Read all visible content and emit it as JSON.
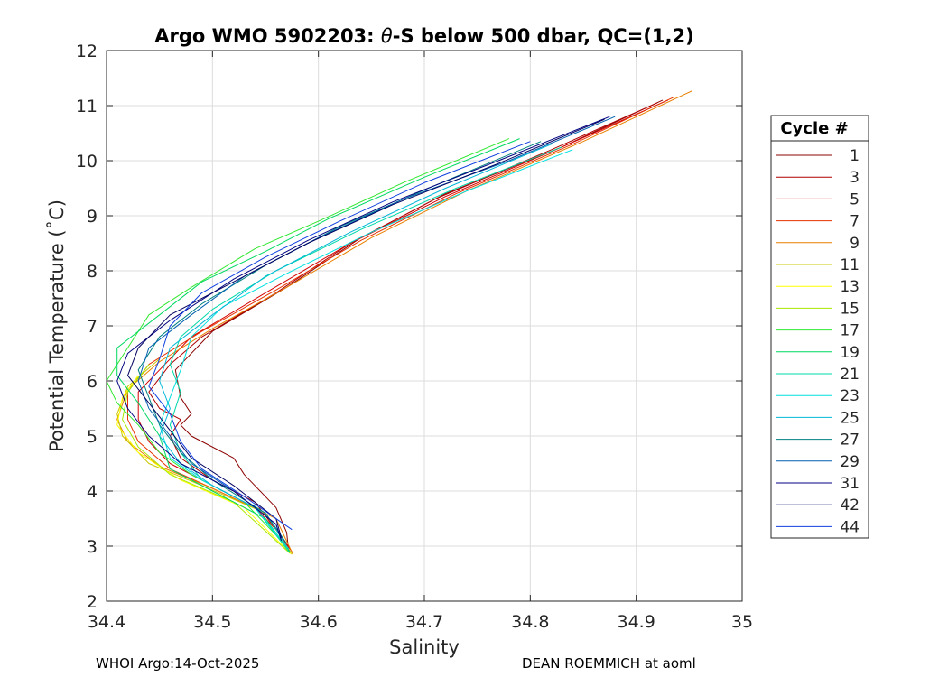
{
  "chart_data": {
    "type": "line",
    "title_prefix": "Argo WMO 5902203: ",
    "title_theta": "θ",
    "title_suffix": "-S below 500 dbar,  QC=(1,2)",
    "xlabel": "Salinity",
    "ylabel": "Potential Temperature (˚C)",
    "xlim": [
      34.4,
      35.0
    ],
    "ylim": [
      2,
      12
    ],
    "xticks": [
      34.4,
      34.5,
      34.6,
      34.7,
      34.8,
      34.9,
      35
    ],
    "xtick_labels": [
      "34.4",
      "34.5",
      "34.6",
      "34.7",
      "34.8",
      "34.9",
      "35"
    ],
    "yticks": [
      2,
      3,
      4,
      5,
      6,
      7,
      8,
      9,
      10,
      11,
      12
    ],
    "ytick_labels": [
      "2",
      "3",
      "4",
      "5",
      "6",
      "7",
      "8",
      "9",
      "10",
      "11",
      "12"
    ],
    "grid": true,
    "legend_title": "Cycle #",
    "legend_placement": "right-outside",
    "series": [
      {
        "name": "1",
        "color": "#8b0000",
        "points": [
          [
            34.925,
            11.1
          ],
          [
            34.83,
            10.25
          ],
          [
            34.72,
            9.4
          ],
          [
            34.64,
            8.6
          ],
          [
            34.57,
            7.7
          ],
          [
            34.5,
            6.9
          ],
          [
            34.465,
            6.2
          ],
          [
            34.47,
            5.7
          ],
          [
            34.48,
            5.4
          ],
          [
            34.47,
            5.2
          ],
          [
            34.48,
            5.0
          ],
          [
            34.52,
            4.6
          ],
          [
            34.53,
            4.3
          ],
          [
            34.56,
            3.7
          ],
          [
            34.57,
            3.25
          ],
          [
            34.572,
            2.9
          ]
        ]
      },
      {
        "name": "3",
        "color": "#b00000",
        "points": [
          [
            34.92,
            11.05
          ],
          [
            34.82,
            10.2
          ],
          [
            34.71,
            9.3
          ],
          [
            34.63,
            8.5
          ],
          [
            34.56,
            7.6
          ],
          [
            34.49,
            6.8
          ],
          [
            34.46,
            6.3
          ],
          [
            34.44,
            5.8
          ],
          [
            34.45,
            5.5
          ],
          [
            34.47,
            5.3
          ],
          [
            34.46,
            5.0
          ],
          [
            34.47,
            4.6
          ],
          [
            34.5,
            4.2
          ],
          [
            34.54,
            3.8
          ],
          [
            34.56,
            3.3
          ],
          [
            34.572,
            2.95
          ]
        ]
      },
      {
        "name": "5",
        "color": "#d40000",
        "points": [
          [
            34.93,
            11.1
          ],
          [
            34.83,
            10.25
          ],
          [
            34.72,
            9.35
          ],
          [
            34.63,
            8.5
          ],
          [
            34.55,
            7.6
          ],
          [
            34.48,
            6.8
          ],
          [
            34.45,
            6.2
          ],
          [
            34.43,
            5.8
          ],
          [
            34.43,
            5.3
          ],
          [
            34.44,
            4.9
          ],
          [
            34.46,
            4.5
          ],
          [
            34.5,
            4.1
          ],
          [
            34.54,
            3.7
          ],
          [
            34.56,
            3.3
          ],
          [
            34.575,
            2.9
          ]
        ]
      },
      {
        "name": "7",
        "color": "#e83000",
        "points": [
          [
            34.935,
            11.15
          ],
          [
            34.84,
            10.3
          ],
          [
            34.73,
            9.4
          ],
          [
            34.64,
            8.55
          ],
          [
            34.56,
            7.65
          ],
          [
            34.49,
            6.9
          ],
          [
            34.44,
            6.3
          ],
          [
            34.42,
            5.8
          ],
          [
            34.42,
            5.3
          ],
          [
            34.43,
            4.9
          ],
          [
            34.46,
            4.4
          ],
          [
            34.5,
            4.05
          ],
          [
            34.55,
            3.6
          ],
          [
            34.574,
            2.88
          ]
        ]
      },
      {
        "name": "9",
        "color": "#e88000",
        "points": [
          [
            34.953,
            11.27
          ],
          [
            34.85,
            10.35
          ],
          [
            34.74,
            9.45
          ],
          [
            34.65,
            8.6
          ],
          [
            34.57,
            7.7
          ],
          [
            34.5,
            6.95
          ],
          [
            34.45,
            6.35
          ],
          [
            34.42,
            5.85
          ],
          [
            34.41,
            5.3
          ],
          [
            34.42,
            4.9
          ],
          [
            34.45,
            4.45
          ],
          [
            34.5,
            4.05
          ],
          [
            34.56,
            3.5
          ],
          [
            34.576,
            2.85
          ]
        ]
      },
      {
        "name": "11",
        "color": "#c8c800",
        "points": [
          [
            34.45,
            6.4
          ],
          [
            34.42,
            5.9
          ],
          [
            34.41,
            5.4
          ],
          [
            34.415,
            5.0
          ],
          [
            34.44,
            4.5
          ],
          [
            34.49,
            4.1
          ],
          [
            34.55,
            3.6
          ],
          [
            34.575,
            2.85
          ]
        ]
      },
      {
        "name": "13",
        "color": "#ffff00",
        "points": [
          [
            34.43,
            6.1
          ],
          [
            34.415,
            5.7
          ],
          [
            34.41,
            5.2
          ],
          [
            34.43,
            4.7
          ],
          [
            34.47,
            4.2
          ],
          [
            34.53,
            3.7
          ],
          [
            34.574,
            2.86
          ]
        ]
      },
      {
        "name": "15",
        "color": "#a8e800",
        "points": [
          [
            34.44,
            6.3
          ],
          [
            34.42,
            5.8
          ],
          [
            34.415,
            5.3
          ],
          [
            34.43,
            4.8
          ],
          [
            34.46,
            4.3
          ],
          [
            34.52,
            3.8
          ],
          [
            34.573,
            2.87
          ]
        ]
      },
      {
        "name": "17",
        "color": "#30e830",
        "points": [
          [
            34.78,
            10.4
          ],
          [
            34.68,
            9.6
          ],
          [
            34.6,
            8.9
          ],
          [
            34.54,
            8.4
          ],
          [
            34.48,
            7.7
          ],
          [
            34.44,
            7.2
          ],
          [
            34.42,
            6.6
          ],
          [
            34.4,
            6.0
          ],
          [
            34.41,
            5.6
          ],
          [
            34.43,
            5.2
          ],
          [
            34.45,
            4.7
          ],
          [
            34.48,
            4.3
          ],
          [
            34.53,
            3.8
          ],
          [
            34.57,
            3.0
          ]
        ]
      },
      {
        "name": "19",
        "color": "#00d860",
        "points": [
          [
            34.79,
            10.4
          ],
          [
            34.7,
            9.7
          ],
          [
            34.61,
            8.95
          ],
          [
            34.55,
            8.35
          ],
          [
            34.49,
            7.8
          ],
          [
            34.45,
            7.2
          ],
          [
            34.41,
            6.6
          ],
          [
            34.41,
            6.1
          ],
          [
            34.43,
            5.6
          ],
          [
            34.45,
            5.0
          ],
          [
            34.46,
            4.4
          ],
          [
            34.5,
            4.0
          ],
          [
            34.55,
            3.5
          ],
          [
            34.573,
            2.9
          ]
        ]
      },
      {
        "name": "21",
        "color": "#00d8a8",
        "points": [
          [
            34.83,
            10.25
          ],
          [
            34.73,
            9.5
          ],
          [
            34.64,
            8.75
          ],
          [
            34.56,
            8.0
          ],
          [
            34.5,
            7.3
          ],
          [
            34.47,
            6.8
          ],
          [
            34.46,
            6.3
          ],
          [
            34.47,
            5.8
          ],
          [
            34.46,
            5.2
          ],
          [
            34.47,
            4.7
          ],
          [
            34.49,
            4.2
          ],
          [
            34.54,
            3.7
          ],
          [
            34.572,
            2.9
          ]
        ]
      },
      {
        "name": "23",
        "color": "#00e0e0",
        "points": [
          [
            34.84,
            10.2
          ],
          [
            34.74,
            9.45
          ],
          [
            34.65,
            8.7
          ],
          [
            34.57,
            7.95
          ],
          [
            34.51,
            7.35
          ],
          [
            34.48,
            6.8
          ],
          [
            34.47,
            6.2
          ],
          [
            34.46,
            5.7
          ],
          [
            34.45,
            5.2
          ],
          [
            34.46,
            4.6
          ],
          [
            34.49,
            4.2
          ],
          [
            34.54,
            3.7
          ],
          [
            34.572,
            2.95
          ]
        ]
      },
      {
        "name": "25",
        "color": "#00b8d8",
        "points": [
          [
            34.82,
            10.3
          ],
          [
            34.72,
            9.5
          ],
          [
            34.63,
            8.7
          ],
          [
            34.55,
            7.9
          ],
          [
            34.5,
            7.2
          ],
          [
            34.46,
            6.6
          ],
          [
            34.45,
            6.0
          ],
          [
            34.46,
            5.5
          ],
          [
            34.45,
            5.0
          ],
          [
            34.47,
            4.5
          ],
          [
            34.5,
            4.1
          ],
          [
            34.55,
            3.6
          ],
          [
            34.57,
            3.0
          ]
        ]
      },
      {
        "name": "27",
        "color": "#008080",
        "points": [
          [
            34.81,
            10.35
          ],
          [
            34.71,
            9.55
          ],
          [
            34.62,
            8.8
          ],
          [
            34.55,
            8.1
          ],
          [
            34.49,
            7.4
          ],
          [
            34.45,
            6.8
          ],
          [
            34.43,
            6.2
          ],
          [
            34.44,
            5.7
          ],
          [
            34.45,
            5.2
          ],
          [
            34.47,
            4.7
          ],
          [
            34.5,
            4.2
          ],
          [
            34.55,
            3.6
          ],
          [
            34.57,
            3.05
          ]
        ]
      },
      {
        "name": "29",
        "color": "#0060b0",
        "points": [
          [
            34.88,
            10.8
          ],
          [
            34.78,
            10.0
          ],
          [
            34.68,
            9.3
          ],
          [
            34.6,
            8.6
          ],
          [
            34.53,
            7.9
          ],
          [
            34.48,
            7.2
          ],
          [
            34.44,
            6.6
          ],
          [
            34.43,
            6.0
          ],
          [
            34.44,
            5.5
          ],
          [
            34.46,
            5.0
          ],
          [
            34.48,
            4.5
          ],
          [
            34.52,
            4.0
          ],
          [
            34.56,
            3.4
          ],
          [
            34.565,
            3.1
          ]
        ]
      },
      {
        "name": "31",
        "color": "#000080",
        "points": [
          [
            34.875,
            10.8
          ],
          [
            34.77,
            10.0
          ],
          [
            34.67,
            9.25
          ],
          [
            34.59,
            8.55
          ],
          [
            34.52,
            7.85
          ],
          [
            34.46,
            7.1
          ],
          [
            34.42,
            6.5
          ],
          [
            34.41,
            6.0
          ],
          [
            34.42,
            5.5
          ],
          [
            34.44,
            5.0
          ],
          [
            34.47,
            4.5
          ],
          [
            34.52,
            4.0
          ],
          [
            34.56,
            3.4
          ],
          [
            34.565,
            3.1
          ]
        ]
      },
      {
        "name": "42",
        "color": "#000060",
        "points": [
          [
            34.87,
            10.75
          ],
          [
            34.77,
            9.95
          ],
          [
            34.67,
            9.2
          ],
          [
            34.59,
            8.5
          ],
          [
            34.52,
            7.8
          ],
          [
            34.46,
            7.2
          ],
          [
            34.43,
            6.6
          ],
          [
            34.42,
            6.1
          ],
          [
            34.44,
            5.6
          ],
          [
            34.46,
            5.1
          ],
          [
            34.48,
            4.6
          ],
          [
            34.52,
            4.1
          ],
          [
            34.56,
            3.5
          ],
          [
            34.565,
            3.15
          ]
        ]
      },
      {
        "name": "44",
        "color": "#1040e0",
        "points": [
          [
            34.8,
            10.35
          ],
          [
            34.7,
            9.6
          ],
          [
            34.62,
            8.9
          ],
          [
            34.55,
            8.25
          ],
          [
            34.49,
            7.6
          ],
          [
            34.46,
            7.0
          ],
          [
            34.45,
            6.4
          ],
          [
            34.44,
            5.9
          ],
          [
            34.46,
            5.4
          ],
          [
            34.47,
            4.9
          ],
          [
            34.49,
            4.4
          ],
          [
            34.53,
            3.9
          ],
          [
            34.575,
            3.3
          ]
        ]
      }
    ]
  },
  "footer": {
    "left": "WHOI Argo:14-Oct-2025",
    "right": "DEAN ROEMMICH at aoml"
  }
}
